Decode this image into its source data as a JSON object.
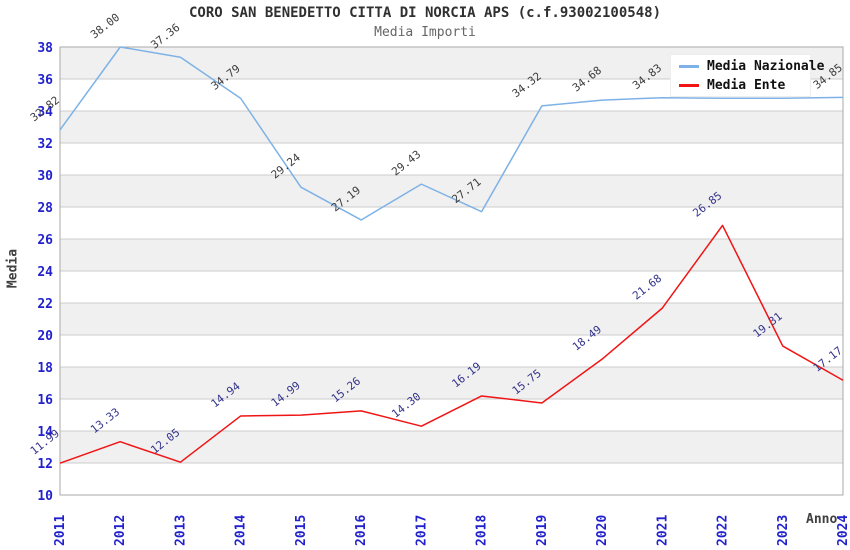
{
  "header": {
    "title": "CORO SAN BENEDETTO CITTA DI NORCIA APS (c.f.93002100548)",
    "subtitle": "Media Importi"
  },
  "colors": {
    "background": "#FFFFFF",
    "band_gray": "#F0F0F0",
    "band_white": "#FFFFFF",
    "gridline": "#CCCCCC",
    "plot_border": "#AAAAAA",
    "axis_tick_text": "#2222CC",
    "title_text": "#303030",
    "subtitle_text": "#666666",
    "axis_title_text": "#404040",
    "nazionale_line": "#7EB2E6",
    "nazionale_label": "#3C3C3C",
    "ente_line": "#F01414",
    "ente_label": "#34348C",
    "legend_background": "#FFFFFF"
  },
  "chart_data": {
    "type": "line",
    "title": "CORO SAN BENEDETTO CITTA DI NORCIA APS (c.f.93002100548)",
    "subtitle": "Media Importi",
    "xlabel": "Anno",
    "ylabel": "Media",
    "categories": [
      "2011",
      "2012",
      "2013",
      "2014",
      "2015",
      "2016",
      "2017",
      "2018",
      "2019",
      "2020",
      "2021",
      "2022",
      "2023",
      "2024"
    ],
    "ylim": [
      10,
      38
    ],
    "ytick_step": 2,
    "yticks": [
      10,
      12,
      14,
      16,
      18,
      20,
      22,
      24,
      26,
      28,
      30,
      32,
      34,
      36,
      38
    ],
    "grid": "horizontal alternating bands",
    "legend_position": "top-right",
    "series": [
      {
        "name": "Media Nazionale",
        "color": "#7EB2E6",
        "label_color": "#3C3C3C",
        "values": [
          32.82,
          38.0,
          37.36,
          34.79,
          29.24,
          27.19,
          29.43,
          27.71,
          34.32,
          34.68,
          34.83,
          34.8,
          34.8,
          34.85
        ],
        "labels": [
          "32.82",
          "38.00",
          "37.36",
          "34.79",
          "29.24",
          "27.19",
          "29.43",
          "27.71",
          "34.32",
          "34.68",
          "34.83",
          "",
          "",
          "34.85"
        ]
      },
      {
        "name": "Media Ente",
        "color": "#F01414",
        "label_color": "#34348C",
        "values": [
          11.99,
          13.33,
          12.05,
          14.94,
          14.99,
          15.26,
          14.3,
          16.19,
          15.75,
          18.49,
          21.68,
          26.85,
          19.31,
          17.17
        ],
        "labels": [
          "11.99",
          "13.33",
          "12.05",
          "14.94",
          "14.99",
          "15.26",
          "14.30",
          "16.19",
          "15.75",
          "18.49",
          "21.68",
          "26.85",
          "19.31",
          "17.17"
        ]
      }
    ]
  }
}
